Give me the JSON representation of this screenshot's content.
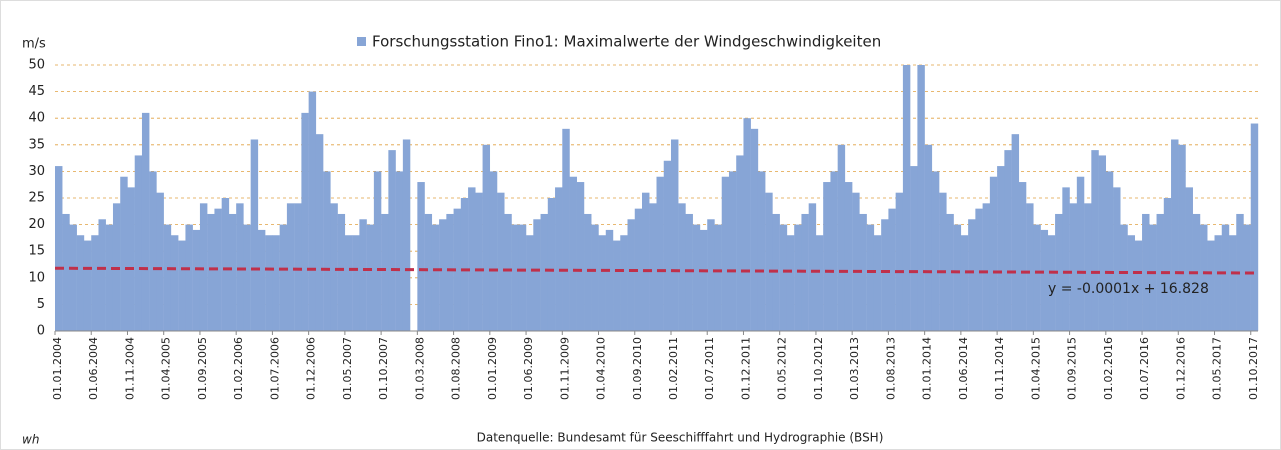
{
  "chart_data": {
    "type": "bar",
    "y_label": "m/s",
    "source": "Datenquelle: Bundesamt für Seeschifffahrt und Hydrographie (BSH)",
    "author": "wh",
    "legend": "top",
    "grid": true,
    "ylim": [
      0,
      50
    ],
    "yticks": [
      0,
      5,
      10,
      15,
      20,
      25,
      30,
      35,
      40,
      45,
      50
    ],
    "categories": [
      "01.01.2004",
      null,
      null,
      null,
      null,
      "01.06.2004",
      null,
      null,
      null,
      null,
      "01.11.2004",
      null,
      null,
      null,
      null,
      "01.04.2005",
      null,
      null,
      null,
      null,
      "01.09.2005",
      null,
      null,
      null,
      null,
      "01.02.2006",
      null,
      null,
      null,
      null,
      "01.07.2006",
      null,
      null,
      null,
      null,
      "01.12.2006",
      null,
      null,
      null,
      null,
      "01.05.2007",
      null,
      null,
      null,
      null,
      "01.10.2007",
      null,
      null,
      null,
      null,
      "01.03.2008",
      null,
      null,
      null,
      null,
      "01.08.2008",
      null,
      null,
      null,
      null,
      "01.01.2009",
      null,
      null,
      null,
      null,
      "01.06.2009",
      null,
      null,
      null,
      null,
      "01.11.2009",
      null,
      null,
      null,
      null,
      "01.04.2010",
      null,
      null,
      null,
      null,
      "01.09.2010",
      null,
      null,
      null,
      null,
      "01.02.2011",
      null,
      null,
      null,
      null,
      "01.07.2011",
      null,
      null,
      null,
      null,
      "01.12.2011",
      null,
      null,
      null,
      null,
      "01.05.2012",
      null,
      null,
      null,
      null,
      "01.10.2012",
      null,
      null,
      null,
      null,
      "01.03.2013",
      null,
      null,
      null,
      null,
      "01.08.2013",
      null,
      null,
      null,
      null,
      "01.01.2014",
      null,
      null,
      null,
      null,
      "01.06.2014",
      null,
      null,
      null,
      null,
      "01.11.2014",
      null,
      null,
      null,
      null,
      "01.04.2015",
      null,
      null,
      null,
      null,
      "01.09.2015",
      null,
      null,
      null,
      null,
      "01.02.2016",
      null,
      null,
      null,
      null,
      "01.07.2016",
      null,
      null,
      null,
      null,
      "01.12.2016",
      null,
      null,
      null,
      null,
      "01.05.2017",
      null,
      null,
      null,
      null,
      "01.10.2017"
    ],
    "series": [
      {
        "name": "Forschungsstation Fino1: Maximalwerte der Windgeschwindigkeiten",
        "color": "#87a5d6",
        "values": [
          31,
          22,
          20,
          18,
          17,
          18,
          21,
          20,
          24,
          29,
          27,
          33,
          41,
          30,
          26,
          20,
          18,
          17,
          20,
          19,
          24,
          22,
          23,
          25,
          22,
          24,
          20,
          36,
          19,
          18,
          18,
          20,
          24,
          24,
          41,
          45,
          37,
          30,
          24,
          22,
          18,
          18,
          21,
          20,
          30,
          22,
          34,
          30,
          36,
          null,
          28,
          22,
          20,
          21,
          22,
          23,
          25,
          27,
          26,
          35,
          30,
          26,
          22,
          20,
          20,
          18,
          21,
          22,
          25,
          27,
          38,
          29,
          28,
          22,
          20,
          18,
          19,
          17,
          18,
          21,
          23,
          26,
          24,
          29,
          32,
          36,
          24,
          22,
          20,
          19,
          21,
          20,
          29,
          30,
          33,
          40,
          38,
          30,
          26,
          22,
          20,
          18,
          20,
          22,
          24,
          18,
          28,
          30,
          35,
          28,
          26,
          22,
          20,
          18,
          21,
          23,
          26,
          50,
          31,
          50,
          35,
          30,
          26,
          22,
          20,
          18,
          21,
          23,
          24,
          29,
          31,
          34,
          37,
          28,
          24,
          20,
          19,
          18,
          22,
          27,
          24,
          29,
          24,
          34,
          33,
          30,
          27,
          20,
          18,
          17,
          22,
          20,
          22,
          25,
          36,
          35,
          27,
          22,
          20,
          17,
          18,
          20,
          18,
          22,
          20,
          39
        ]
      }
    ],
    "trendline": {
      "color": "#c0304a",
      "values": [
        11.8,
        10.9
      ],
      "label": "y = -0.0001x + 16.828"
    }
  }
}
